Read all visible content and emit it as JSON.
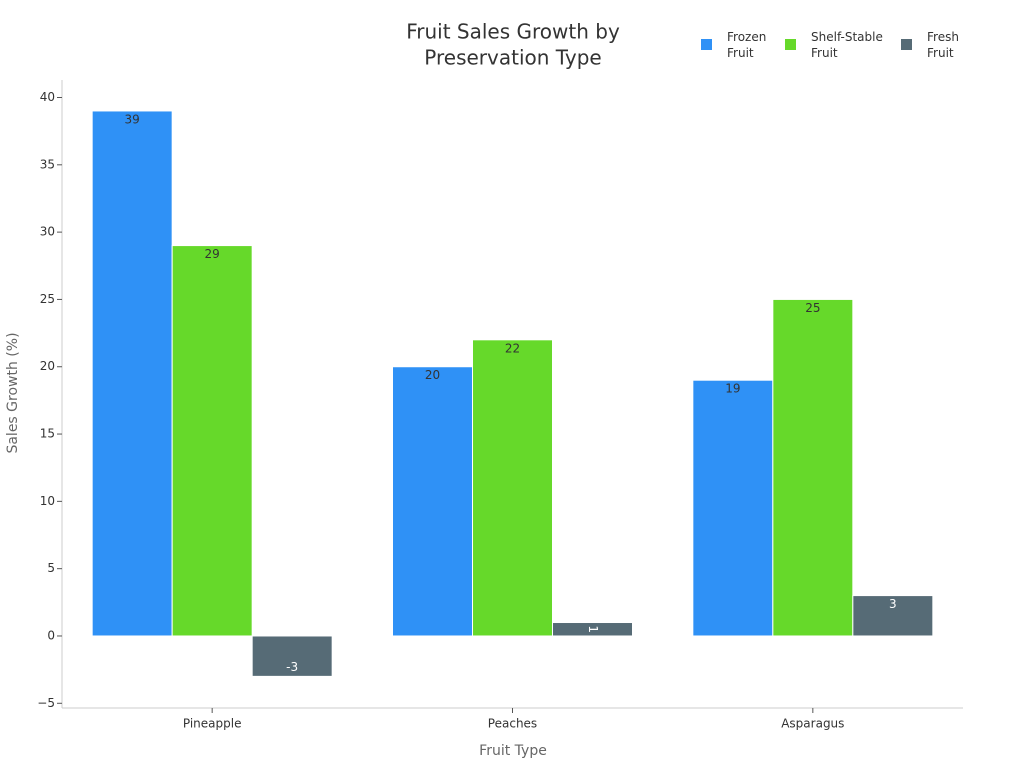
{
  "chart_data": {
    "type": "bar",
    "title": [
      "Fruit Sales Growth by",
      "Preservation Type"
    ],
    "x_label": "Fruit Type",
    "y_label": "Sales Growth (%)",
    "categories": [
      "Pineapple",
      "Peaches",
      "Asparagus"
    ],
    "series": [
      {
        "name": "Frozen Fruit",
        "color": "#2f91f6",
        "values": [
          39,
          20,
          19
        ]
      },
      {
        "name": "Shelf-Stable Fruit",
        "color": "#66d92a",
        "values": [
          29,
          22,
          25
        ]
      },
      {
        "name": "Fresh Fruit",
        "color": "#566b76",
        "values": [
          -3,
          1,
          3
        ]
      }
    ],
    "ylim": [
      -5.35,
      41.3
    ],
    "yticks": [
      {
        "value": -5,
        "label": "−5"
      },
      0,
      5,
      10,
      15,
      20,
      25,
      30,
      35,
      40
    ],
    "legend": "top-right"
  }
}
